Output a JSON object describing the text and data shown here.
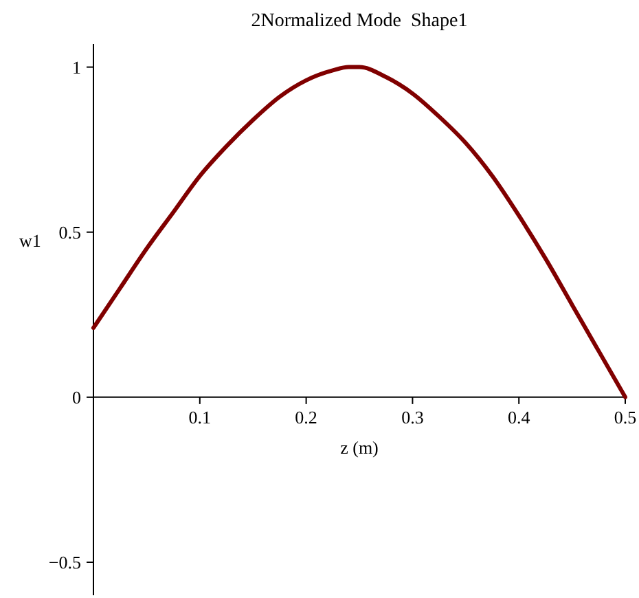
{
  "chart_data": {
    "type": "line",
    "title": "2Normalized Mode  Shape1",
    "xlabel": "z (m)",
    "ylabel": "w1",
    "x": [
      0,
      0.025,
      0.05,
      0.075,
      0.1,
      0.125,
      0.15,
      0.175,
      0.2,
      0.225,
      0.24,
      0.25,
      0.275,
      0.3,
      0.325,
      0.35,
      0.375,
      0.4,
      0.425,
      0.45,
      0.475,
      0.5
    ],
    "series": [
      {
        "color": "#800000",
        "values": [
          0.21,
          0.33,
          0.45,
          0.56,
          0.67,
          0.76,
          0.84,
          0.91,
          0.96,
          0.99,
          1.0,
          1.0,
          0.97,
          0.92,
          0.85,
          0.77,
          0.67,
          0.55,
          0.42,
          0.28,
          0.14,
          0.0
        ]
      }
    ],
    "xlim": [
      0,
      0.5
    ],
    "ylim": [
      -0.6,
      1.07
    ],
    "xticks": [
      0.1,
      0.2,
      0.3,
      0.4,
      0.5
    ],
    "yticks": [
      {
        "value": -0.5,
        "label": "−0.5"
      },
      0,
      0.5,
      1
    ],
    "grid": false,
    "marker": "none",
    "line_style": "solid"
  }
}
